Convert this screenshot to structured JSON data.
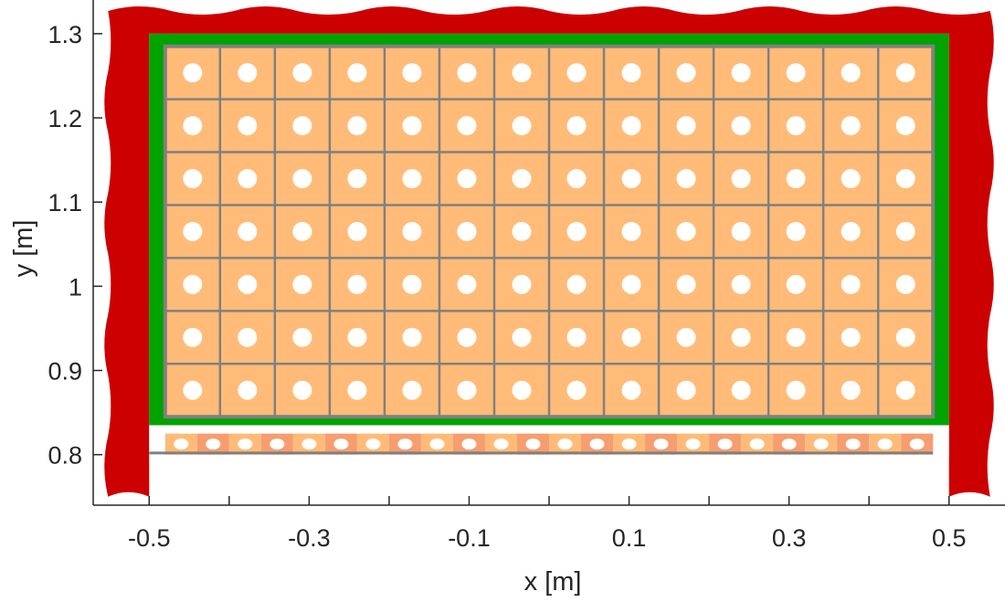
{
  "chart_data": {
    "type": "diagram-plot",
    "xlabel": "x [m]",
    "ylabel": "y [m]",
    "xlim": [
      -0.57,
      0.57
    ],
    "ylim": [
      0.74,
      1.34
    ],
    "xticks": [
      -0.5,
      -0.3,
      -0.1,
      0.1,
      0.3,
      0.5
    ],
    "xtick_labels": [
      "-0.5",
      "-0.3",
      "-0.1",
      "0.1",
      "0.3",
      "0.5"
    ],
    "x_minor_ticks": [
      -0.4,
      -0.2,
      0.0,
      0.2,
      0.4
    ],
    "yticks": [
      0.8,
      0.9,
      1.0,
      1.1,
      1.2,
      1.3
    ],
    "ytick_labels": [
      "0.8",
      "0.9",
      "1",
      "1.1",
      "1.2",
      "1.3"
    ],
    "curtain": {
      "color": "#cc0000",
      "x_range": [
        -0.5,
        0.5
      ],
      "top_y": 1.3,
      "bottom_y": 0.75
    },
    "frame": {
      "color": "#00a300",
      "x_range": [
        -0.5,
        0.5
      ],
      "y_range": [
        0.835,
        1.3
      ]
    },
    "panel_grid": {
      "fill_color": "#ffbb77",
      "line_color": "#808080",
      "dot_color": "#ffffff",
      "x_range": [
        -0.48,
        0.48
      ],
      "y_range": [
        0.845,
        1.285
      ],
      "columns": 14,
      "rows": 7
    },
    "strip": {
      "x_range": [
        -0.48,
        0.48
      ],
      "y_range": [
        0.8,
        0.825
      ],
      "cells": 24,
      "colors": [
        "#ffbb77",
        "#f79d6f"
      ],
      "dot_color": "#ffffff",
      "baseline_y": 0.802,
      "baseline_color": "#808080"
    }
  }
}
